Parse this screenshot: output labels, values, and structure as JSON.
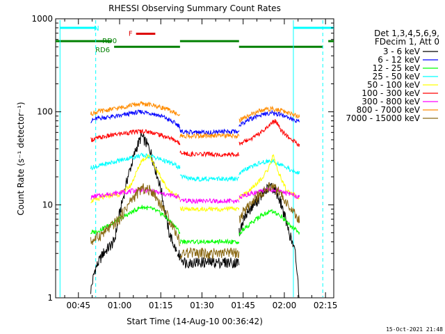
{
  "chart_data": {
    "type": "line",
    "title": "RHESSI Observing Summary Count Rates",
    "xlabel": "Start Time (14-Aug-10 00:36:42)",
    "ylabel": "Count Rate (s⁻¹ detector⁻¹)",
    "yscale": "log",
    "ylim": [
      1,
      1000
    ],
    "xlim_min": [
      36.7,
      138
    ],
    "x_tick_labels": [
      "00:45",
      "01:00",
      "01:15",
      "01:30",
      "01:45",
      "02:00",
      "02:15"
    ],
    "x_tick_values_min": [
      45,
      60,
      75,
      90,
      105,
      120,
      135
    ],
    "y_tick_labels": [
      "1",
      "10",
      "100",
      "1000"
    ],
    "y_tick_values": [
      1,
      10,
      100,
      1000
    ],
    "legend_header": [
      "Det 1,3,4,5,6,9,",
      "FDecim 1, Att 0"
    ],
    "legend_position": "right",
    "series": [
      {
        "name": "3 - 6 keV",
        "color": "#000000",
        "segments": [
          [
            [
              49.5,
              1.2
            ],
            [
              51,
              2.0
            ],
            [
              54,
              3
            ],
            [
              58,
              4
            ],
            [
              60,
              8
            ],
            [
              63,
              20
            ],
            [
              66,
              40
            ],
            [
              68,
              55
            ],
            [
              71,
              40
            ],
            [
              75,
              15
            ],
            [
              78,
              5
            ],
            [
              81,
              3
            ]
          ],
          [
            [
              81,
              3
            ],
            [
              84,
              2.4
            ],
            [
              88,
              2.4
            ],
            [
              92,
              2.4
            ],
            [
              96,
              2.4
            ],
            [
              100,
              2.4
            ],
            [
              103.5,
              2.4
            ]
          ],
          [
            [
              103.5,
              5
            ],
            [
              106,
              8
            ],
            [
              110,
              11
            ],
            [
              113,
              14
            ],
            [
              115,
              16
            ],
            [
              117,
              14
            ],
            [
              119,
              10
            ],
            [
              121,
              6
            ],
            [
              124,
              3
            ],
            [
              125.5,
              1
            ]
          ]
        ]
      },
      {
        "name": "6 - 12 keV",
        "color": "#0000ff",
        "segments": [
          [
            [
              49.5,
              80
            ],
            [
              52,
              85
            ],
            [
              56,
              88
            ],
            [
              60,
              90
            ],
            [
              64,
              96
            ],
            [
              68,
              100
            ],
            [
              72,
              96
            ],
            [
              76,
              88
            ],
            [
              80,
              76
            ],
            [
              82,
              70
            ]
          ],
          [
            [
              82,
              62
            ],
            [
              86,
              60
            ],
            [
              90,
              60
            ],
            [
              94,
              60
            ],
            [
              98,
              61
            ],
            [
              103.5,
              62
            ]
          ],
          [
            [
              103.5,
              72
            ],
            [
              107,
              82
            ],
            [
              111,
              92
            ],
            [
              115,
              98
            ],
            [
              119,
              93
            ],
            [
              122,
              85
            ],
            [
              125.5,
              78
            ]
          ]
        ]
      },
      {
        "name": "12 - 25 keV",
        "color": "#00ff00",
        "segments": [
          [
            [
              49.5,
              5
            ],
            [
              52,
              5.2
            ],
            [
              56,
              6
            ],
            [
              60,
              7
            ],
            [
              64,
              8.2
            ],
            [
              68,
              9.5
            ],
            [
              72,
              9
            ],
            [
              76,
              7.8
            ],
            [
              80,
              6
            ],
            [
              82,
              5
            ]
          ],
          [
            [
              82,
              4
            ],
            [
              86,
              4
            ],
            [
              90,
              4
            ],
            [
              94,
              4
            ],
            [
              98,
              4
            ],
            [
              103.5,
              4
            ]
          ],
          [
            [
              103.5,
              5
            ],
            [
              107,
              6
            ],
            [
              111,
              7.5
            ],
            [
              115,
              8.5
            ],
            [
              119,
              7.5
            ],
            [
              122,
              6
            ],
            [
              125.5,
              5
            ]
          ]
        ]
      },
      {
        "name": "25 - 50 keV",
        "color": "#00ffff",
        "segments": [
          [
            [
              49.5,
              25
            ],
            [
              52,
              26
            ],
            [
              56,
              28
            ],
            [
              60,
              30
            ],
            [
              64,
              32
            ],
            [
              68,
              34
            ],
            [
              72,
              33
            ],
            [
              76,
              30
            ],
            [
              80,
              27
            ],
            [
              82,
              25
            ]
          ],
          [
            [
              82,
              20
            ],
            [
              86,
              19
            ],
            [
              90,
              19
            ],
            [
              94,
              19
            ],
            [
              98,
              19
            ],
            [
              103.5,
              19
            ]
          ],
          [
            [
              103.5,
              22
            ],
            [
              107,
              25
            ],
            [
              111,
              28
            ],
            [
              115,
              30
            ],
            [
              119,
              27
            ],
            [
              122,
              24
            ],
            [
              125.5,
              22
            ]
          ]
        ]
      },
      {
        "name": "50 - 100 keV",
        "color": "#ffff00",
        "segments": [
          [
            [
              49.5,
              11
            ],
            [
              52,
              11.5
            ],
            [
              56,
              12.5
            ],
            [
              60,
              13
            ],
            [
              64,
              16
            ],
            [
              68,
              30
            ],
            [
              71,
              34
            ],
            [
              74,
              22
            ],
            [
              78,
              14
            ],
            [
              82,
              12
            ]
          ],
          [
            [
              82,
              9
            ],
            [
              86,
              9
            ],
            [
              90,
              9
            ],
            [
              94,
              9
            ],
            [
              98,
              9
            ],
            [
              103.5,
              9
            ]
          ],
          [
            [
              103.5,
              12
            ],
            [
              107,
              14
            ],
            [
              111,
              18
            ],
            [
              114,
              24
            ],
            [
              116,
              34
            ],
            [
              118,
              22
            ],
            [
              121,
              14
            ],
            [
              125.5,
              12
            ]
          ]
        ]
      },
      {
        "name": "100 - 300 keV",
        "color": "#ff0000",
        "segments": [
          [
            [
              49.5,
              50
            ],
            [
              52,
              52
            ],
            [
              56,
              55
            ],
            [
              60,
              58
            ],
            [
              64,
              60
            ],
            [
              68,
              62
            ],
            [
              72,
              60
            ],
            [
              76,
              55
            ],
            [
              80,
              50
            ],
            [
              82,
              45
            ]
          ],
          [
            [
              82,
              36
            ],
            [
              86,
              35
            ],
            [
              90,
              35
            ],
            [
              94,
              35
            ],
            [
              98,
              35
            ],
            [
              103.5,
              35
            ]
          ],
          [
            [
              103.5,
              45
            ],
            [
              107,
              50
            ],
            [
              111,
              58
            ],
            [
              115,
              75
            ],
            [
              117,
              80
            ],
            [
              119,
              62
            ],
            [
              122,
              52
            ],
            [
              125.5,
              44
            ]
          ]
        ]
      },
      {
        "name": "300 - 800 keV",
        "color": "#ff00ff",
        "segments": [
          [
            [
              49.5,
              12
            ],
            [
              52,
              12.5
            ],
            [
              56,
              13
            ],
            [
              60,
              13.5
            ],
            [
              64,
              14
            ],
            [
              68,
              14.5
            ],
            [
              72,
              14
            ],
            [
              76,
              13
            ],
            [
              80,
              12.5
            ],
            [
              82,
              12
            ]
          ],
          [
            [
              82,
              11
            ],
            [
              86,
              11
            ],
            [
              90,
              11
            ],
            [
              94,
              11
            ],
            [
              98,
              11
            ],
            [
              103.5,
              11
            ]
          ],
          [
            [
              103.5,
              12
            ],
            [
              107,
              13
            ],
            [
              111,
              14
            ],
            [
              115,
              14.5
            ],
            [
              119,
              14
            ],
            [
              122,
              13
            ],
            [
              125.5,
              12
            ]
          ]
        ]
      },
      {
        "name": "800 - 7000 keV",
        "color": "#ff8c00",
        "segments": [
          [
            [
              49.5,
              95
            ],
            [
              52,
              100
            ],
            [
              56,
              105
            ],
            [
              60,
              110
            ],
            [
              64,
              118
            ],
            [
              68,
              122
            ],
            [
              72,
              118
            ],
            [
              76,
              110
            ],
            [
              80,
              98
            ],
            [
              82,
              90
            ]
          ],
          [
            [
              82,
              55
            ],
            [
              86,
              55
            ],
            [
              90,
              55
            ],
            [
              94,
              55
            ],
            [
              98,
              55
            ],
            [
              103.5,
              55
            ]
          ],
          [
            [
              103.5,
              80
            ],
            [
              107,
              92
            ],
            [
              111,
              102
            ],
            [
              115,
              108
            ],
            [
              119,
              103
            ],
            [
              122,
              95
            ],
            [
              125.5,
              88
            ]
          ]
        ]
      },
      {
        "name": "7000 - 15000 keV",
        "color": "#8b6914",
        "segments": [
          [
            [
              49.5,
              4
            ],
            [
              52,
              4.5
            ],
            [
              56,
              5.5
            ],
            [
              60,
              7
            ],
            [
              64,
              11
            ],
            [
              68,
              15
            ],
            [
              72,
              14
            ],
            [
              76,
              9
            ],
            [
              80,
              5.5
            ],
            [
              82,
              4
            ]
          ],
          [
            [
              82,
              3
            ],
            [
              86,
              3
            ],
            [
              90,
              3
            ],
            [
              94,
              3
            ],
            [
              98,
              3
            ],
            [
              103.5,
              3
            ]
          ],
          [
            [
              103.5,
              7
            ],
            [
              107,
              10
            ],
            [
              111,
              13
            ],
            [
              115,
              16
            ],
            [
              119,
              13
            ],
            [
              122,
              9
            ],
            [
              125.5,
              7
            ]
          ]
        ]
      }
    ],
    "segment_breaks_min": [
      82,
      103.5
    ],
    "vlines": [
      {
        "x": 38.3,
        "style": "solid"
      },
      {
        "x": 51.3,
        "style": "dashed"
      },
      {
        "x": 123.3,
        "style": "solid"
      },
      {
        "x": 134.0,
        "style": "dashed"
      }
    ],
    "vline_color": "#00ffff",
    "status_bars": [
      {
        "label": "N",
        "color": "#00ffff",
        "y": 800,
        "spans": [
          [
            38.3,
            51.3
          ],
          [
            123.3,
            138
          ]
        ]
      },
      {
        "label": "F",
        "color": "#dd0000",
        "y": 690,
        "spans": [
          [
            66,
            73
          ]
        ]
      },
      {
        "label": "RD0",
        "color": "#008000",
        "y": 575,
        "spans": [
          [
            36.7,
            57
          ],
          [
            82,
            103.5
          ],
          [
            136,
            138
          ]
        ]
      },
      {
        "label": "RD6",
        "color": "#008000",
        "y": 500,
        "spans": [
          [
            58,
            82
          ],
          [
            103.5,
            134
          ]
        ]
      }
    ]
  },
  "footer_timestamp": "15-Oct-2021 21:48"
}
